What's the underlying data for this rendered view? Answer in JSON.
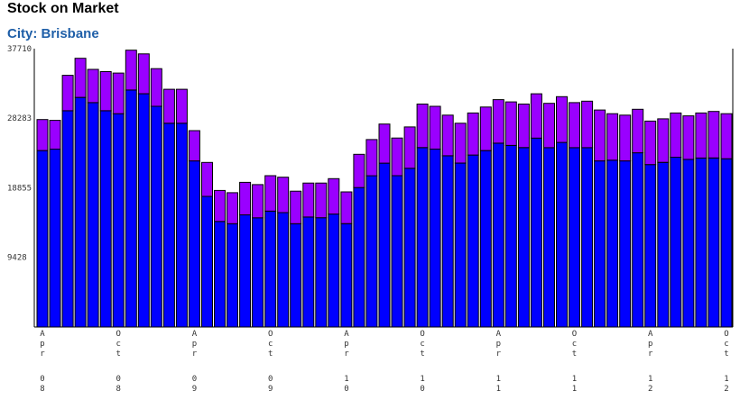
{
  "title": "Stock on Market",
  "subtitle": "City: Brisbane",
  "colors": {
    "lower_bar": "#0000ff",
    "upper_bar": "#9a00ff",
    "outline": "#000000"
  },
  "chart_data": {
    "type": "bar",
    "stacked": true,
    "title": "Stock on Market",
    "subtitle": "City: Brisbane",
    "ylim": [
      0,
      37710
    ],
    "y_ticks": [
      9428,
      18855,
      28283,
      37710
    ],
    "x_tick_labels": [
      {
        "index": 0,
        "month": "Apr",
        "year": "08"
      },
      {
        "index": 6,
        "month": "Oct",
        "year": "08"
      },
      {
        "index": 12,
        "month": "Apr",
        "year": "09"
      },
      {
        "index": 18,
        "month": "Oct",
        "year": "09"
      },
      {
        "index": 24,
        "month": "Apr",
        "year": "10"
      },
      {
        "index": 30,
        "month": "Oct",
        "year": "10"
      },
      {
        "index": 36,
        "month": "Apr",
        "year": "11"
      },
      {
        "index": 42,
        "month": "Oct",
        "year": "11"
      },
      {
        "index": 48,
        "month": "Apr",
        "year": "12"
      },
      {
        "index": 54,
        "month": "Oct",
        "year": "12"
      }
    ],
    "series": [
      {
        "values": [
          23900,
          24100,
          29300,
          31100,
          30400,
          29300,
          28900,
          32100,
          31600,
          29900,
          27600,
          27600,
          22500,
          17700,
          14300,
          14000,
          15200,
          14800,
          15700,
          15500,
          14000,
          14900,
          14800,
          15300,
          14000,
          18900,
          20500,
          22200,
          20500,
          21500,
          24300,
          24100,
          23200,
          22200,
          23300,
          23900,
          24900,
          24600,
          24300,
          25600,
          24300,
          25000,
          24300,
          24300,
          22500,
          22600,
          22500,
          23600,
          22000,
          22300,
          23000,
          22700,
          22900,
          22900,
          22800
        ],
        "color": "#0000ff"
      },
      {
        "values": [
          4200,
          3900,
          4800,
          5300,
          4500,
          5300,
          5500,
          5400,
          5400,
          5100,
          4600,
          4600,
          4100,
          4600,
          4200,
          4200,
          4400,
          4500,
          4800,
          4800,
          4400,
          4600,
          4700,
          4800,
          4300,
          4500,
          4900,
          5300,
          5100,
          5600,
          5900,
          5800,
          5500,
          5400,
          5700,
          5900,
          5900,
          5900,
          5900,
          6000,
          6000,
          6200,
          6100,
          6300,
          6900,
          6300,
          6200,
          5900,
          5900,
          5900,
          6000,
          5900,
          6100,
          6300,
          6100
        ],
        "color": "#9a00ff"
      }
    ]
  }
}
